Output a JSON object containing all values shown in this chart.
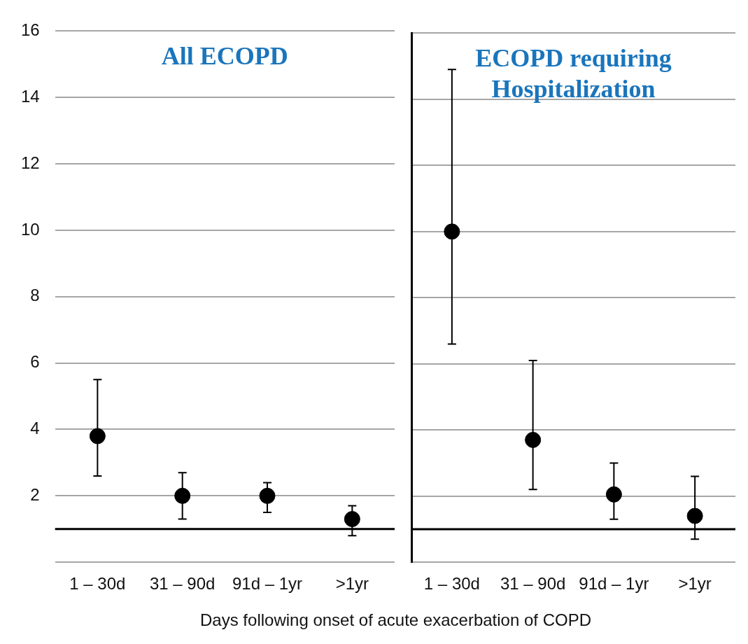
{
  "chart_data": [
    {
      "type": "scatter",
      "title": "All ECOPD",
      "xlabel": "Days following onset of acute exacerbation of COPD",
      "categories": [
        "1 – 30d",
        "31 – 90d",
        "91d – 1yr",
        ">1yr"
      ],
      "values": [
        3.8,
        2.0,
        2.0,
        1.3
      ],
      "errors": [
        [
          2.6,
          5.5
        ],
        [
          1.3,
          2.7
        ],
        [
          1.5,
          2.4
        ],
        [
          0.8,
          1.7
        ]
      ],
      "color": "#000000",
      "marker": "circle",
      "ylim": [
        0,
        16
      ],
      "yticks": [
        {
          "value": 0,
          "label": null
        },
        2,
        4,
        6,
        8,
        10,
        12,
        14,
        16
      ],
      "grid": "y",
      "ref_lines": [
        {
          "axis": "y",
          "value": 1,
          "color": "#000000"
        }
      ]
    },
    {
      "type": "scatter",
      "title": "ECOPD requiring Hospitalization",
      "categories": [
        "1 – 30d",
        "31 – 90d",
        "91d – 1yr",
        ">1yr"
      ],
      "values": [
        10.0,
        3.7,
        2.05,
        1.4
      ],
      "errors": [
        [
          6.6,
          14.9
        ],
        [
          2.2,
          6.1
        ],
        [
          1.3,
          3.0
        ],
        [
          0.7,
          2.6
        ]
      ],
      "color": "#000000",
      "marker": "circle",
      "ylim": [
        0,
        16
      ],
      "yticks": [
        {
          "value": 0,
          "label": null
        },
        2,
        4,
        6,
        8,
        10,
        12,
        14,
        16
      ],
      "grid": "y",
      "tick_labels": "x",
      "ref_lines": [
        {
          "axis": "y",
          "value": 1,
          "color": "#000000"
        }
      ]
    }
  ]
}
